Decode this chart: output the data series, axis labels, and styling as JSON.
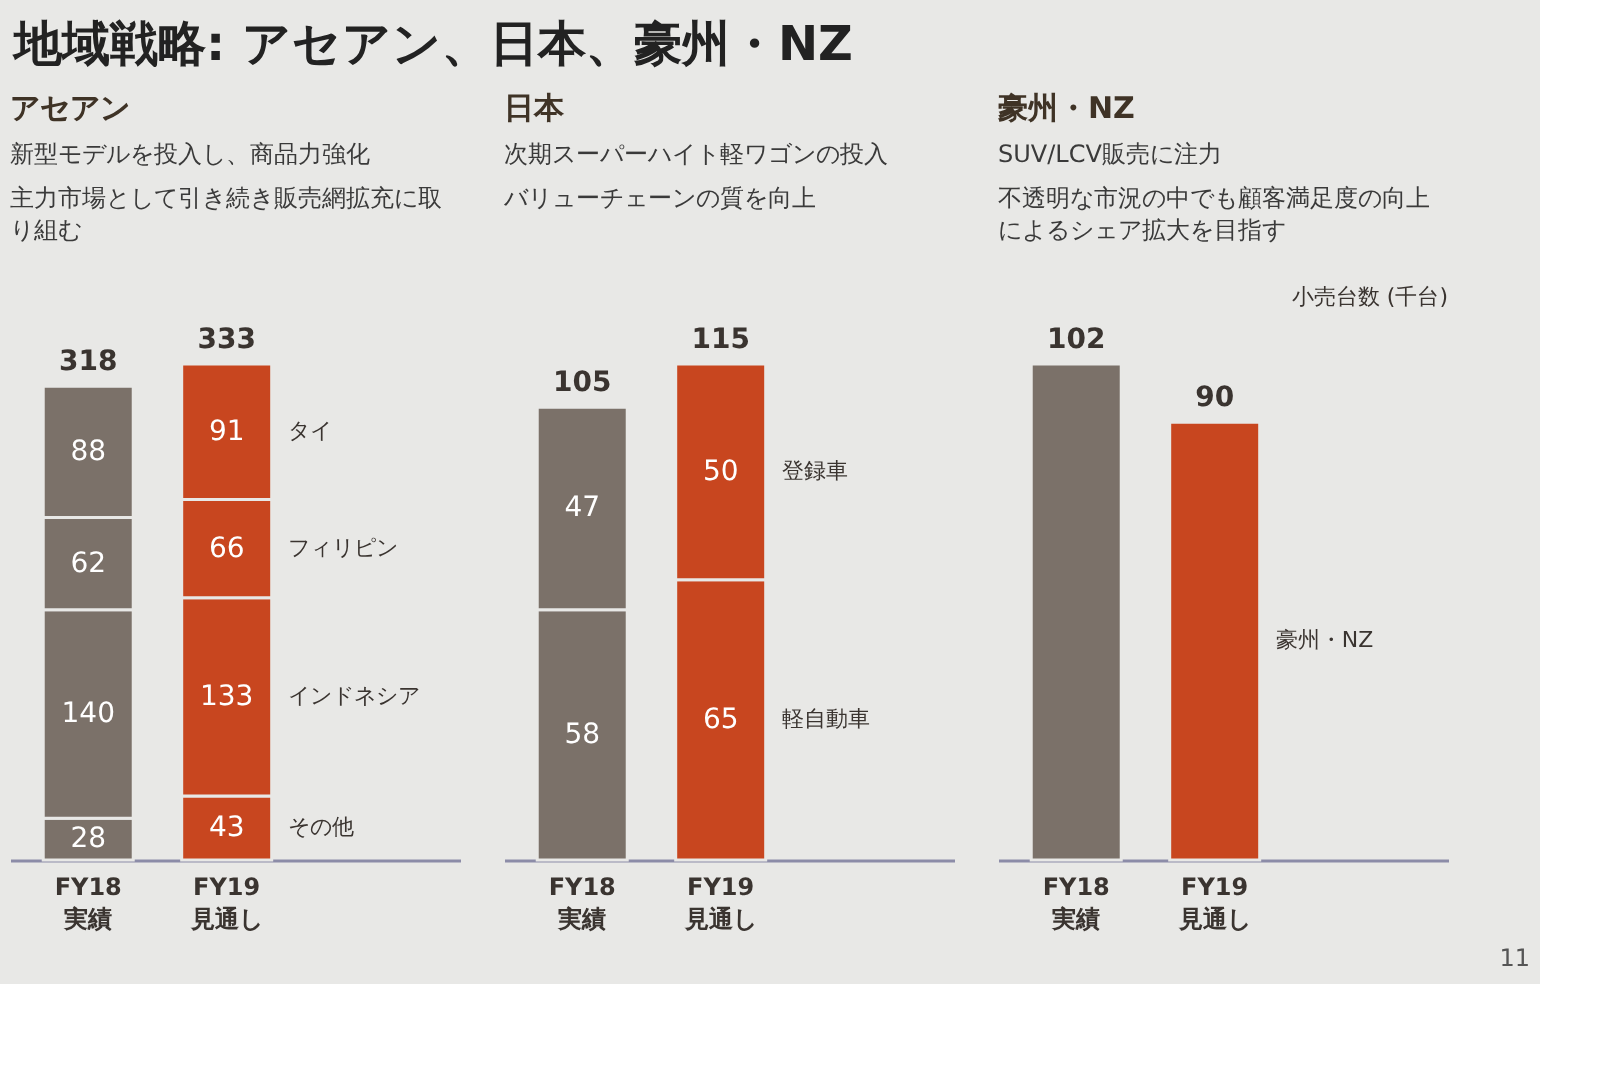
{
  "chart_data": [
    {
      "type": "other",
      "title": "地域戦略: アセアン、日本、豪州・NZ",
      "annotations": [
        "11"
      ]
    },
    {
      "type": "bar",
      "title": "アセアン",
      "annotations": [
        "新型モデルを投入し、商品力強化",
        "主力市場として引き続き販売網拡充に取り組む"
      ],
      "categories": [
        "FY18\n実績",
        "FY19\n見通し"
      ],
      "stacked": true,
      "series": [
        {
          "name": "その他",
          "colors": [
            "#7b7169",
            "#c8461f"
          ],
          "values": [
            28,
            43
          ]
        },
        {
          "name": "インドネシア",
          "colors": [
            "#7b7169",
            "#c8461f"
          ],
          "values": [
            140,
            133
          ]
        },
        {
          "name": "フィリピン",
          "colors": [
            "#7b7169",
            "#c8461f"
          ],
          "values": [
            62,
            66
          ]
        },
        {
          "name": "タイ",
          "colors": [
            "#7b7169",
            "#c8461f"
          ],
          "values": [
            88,
            91
          ]
        }
      ],
      "data_labels": true,
      "totals": [
        "318",
        "333"
      ],
      "tick_labels": "x"
    },
    {
      "type": "bar",
      "title": "日本",
      "annotations": [
        "次期スーパーハイト軽ワゴンの投入",
        "バリューチェーンの質を向上"
      ],
      "categories": [
        "FY18\n実績",
        "FY19\n見通し"
      ],
      "stacked": true,
      "series": [
        {
          "name": "軽自動車",
          "colors": [
            "#7b7169",
            "#c8461f"
          ],
          "values": [
            58,
            65
          ]
        },
        {
          "name": "登録車",
          "colors": [
            "#7b7169",
            "#c8461f"
          ],
          "values": [
            47,
            50
          ]
        }
      ],
      "data_labels": true,
      "totals": [
        "105",
        "115"
      ],
      "tick_labels": "x"
    },
    {
      "type": "bar",
      "title": "豪州・NZ",
      "annotations": [
        "SUV/LCV販売に注力",
        "不透明な市況の中でも顧客満足度の向上によるシェア拡大を目指す"
      ],
      "ylabel": "小売台数 (千台)",
      "categories": [
        "FY18\n実績",
        "FY19\n見通し"
      ],
      "series": [
        {
          "name": "豪州・NZ",
          "colors": [
            "#7b7169",
            "#c8461f"
          ],
          "values": [
            102,
            90
          ]
        }
      ],
      "data_labels": true,
      "tick_labels": "x"
    }
  ]
}
